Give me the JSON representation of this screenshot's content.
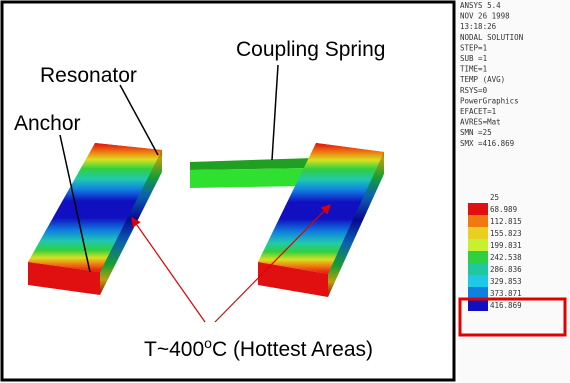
{
  "figure": {
    "labels": {
      "resonator": "Resonator",
      "coupling_spring": "Coupling Spring",
      "anchor": "Anchor",
      "hottest": {
        "prefix": "T~400",
        "superscript": "o",
        "suffix": "C (Hottest Areas)"
      }
    },
    "ansys_header": [
      "ANSYS 5.4",
      "NOV 26 1998",
      "13:18:26",
      "NODAL SOLUTION",
      "STEP=1",
      "SUB =1",
      "TIME=1",
      "TEMP      (AVG)",
      "RSYS=0",
      "PowerGraphics",
      "EFACET=1",
      "AVRES=Mat",
      "SMN =25",
      "SMX =416.869"
    ],
    "legend_values": [
      "25",
      "68.989",
      "112.815",
      "155.823",
      "199.831",
      "242.538",
      "286.836",
      "329.853",
      "373.871",
      "416.869"
    ]
  }
}
